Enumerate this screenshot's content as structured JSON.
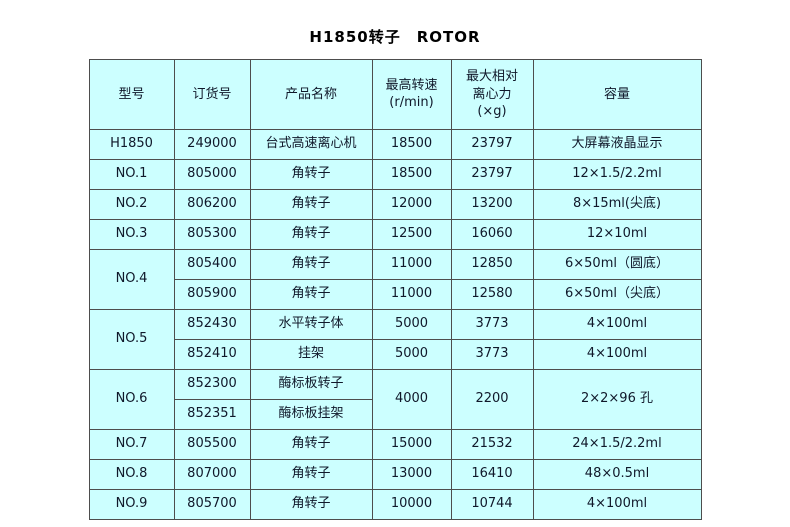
{
  "title": "H1850转子　ROTOR",
  "colors": {
    "cell_background": "#ccffff",
    "border": "#4d4d4d",
    "text": "#10182a",
    "page_background": "#ffffff"
  },
  "headers": {
    "model": "型号",
    "order": "订货号",
    "name": "产品名称",
    "speed_l1": "最高转速",
    "speed_l2": "(r/min)",
    "rcf_l1": "最大相对",
    "rcf_l2": "离心力",
    "rcf_l3": "(×g)",
    "capacity": "容量"
  },
  "rows": [
    {
      "model": "H1850",
      "order": "249000",
      "name": "台式高速离心机",
      "speed": "18500",
      "rcf": "23797",
      "capacity": "大屏幕液晶显示"
    },
    {
      "model": "NO.1",
      "order": "805000",
      "name": "角转子",
      "speed": "18500",
      "rcf": "23797",
      "capacity": "12×1.5/2.2ml"
    },
    {
      "model": "NO.2",
      "order": "806200",
      "name": "角转子",
      "speed": "12000",
      "rcf": "13200",
      "capacity": "8×15ml(尖底)"
    },
    {
      "model": "NO.3",
      "order": "805300",
      "name": "角转子",
      "speed": "12500",
      "rcf": "16060",
      "capacity": "12×10ml"
    },
    {
      "model": "NO.4",
      "order": "805400",
      "name": "角转子",
      "speed": "11000",
      "rcf": "12850",
      "capacity": "6×50ml（圆底）"
    },
    {
      "order": "805900",
      "name": "角转子",
      "speed": "11000",
      "rcf": "12580",
      "capacity": "6×50ml（尖底）"
    },
    {
      "model": "NO.5",
      "order": "852430",
      "name": "水平转子体",
      "speed": "5000",
      "rcf": "3773",
      "capacity": "4×100ml"
    },
    {
      "order": "852410",
      "name": "挂架",
      "speed": "5000",
      "rcf": "3773",
      "capacity": "4×100ml"
    },
    {
      "model": "NO.6",
      "order": "852300",
      "name": "酶标板转子",
      "speed": "4000",
      "rcf": "2200",
      "capacity": "2×2×96 孔"
    },
    {
      "order": "852351",
      "name": "酶标板挂架"
    },
    {
      "model": "NO.7",
      "order": "805500",
      "name": "角转子",
      "speed": "15000",
      "rcf": "21532",
      "capacity": "24×1.5/2.2ml"
    },
    {
      "model": "NO.8",
      "order": "807000",
      "name": "角转子",
      "speed": "13000",
      "rcf": "16410",
      "capacity": "48×0.5ml"
    },
    {
      "model": "NO.9",
      "order": "805700",
      "name": "角转子",
      "speed": "10000",
      "rcf": "10744",
      "capacity": "4×100ml"
    }
  ]
}
